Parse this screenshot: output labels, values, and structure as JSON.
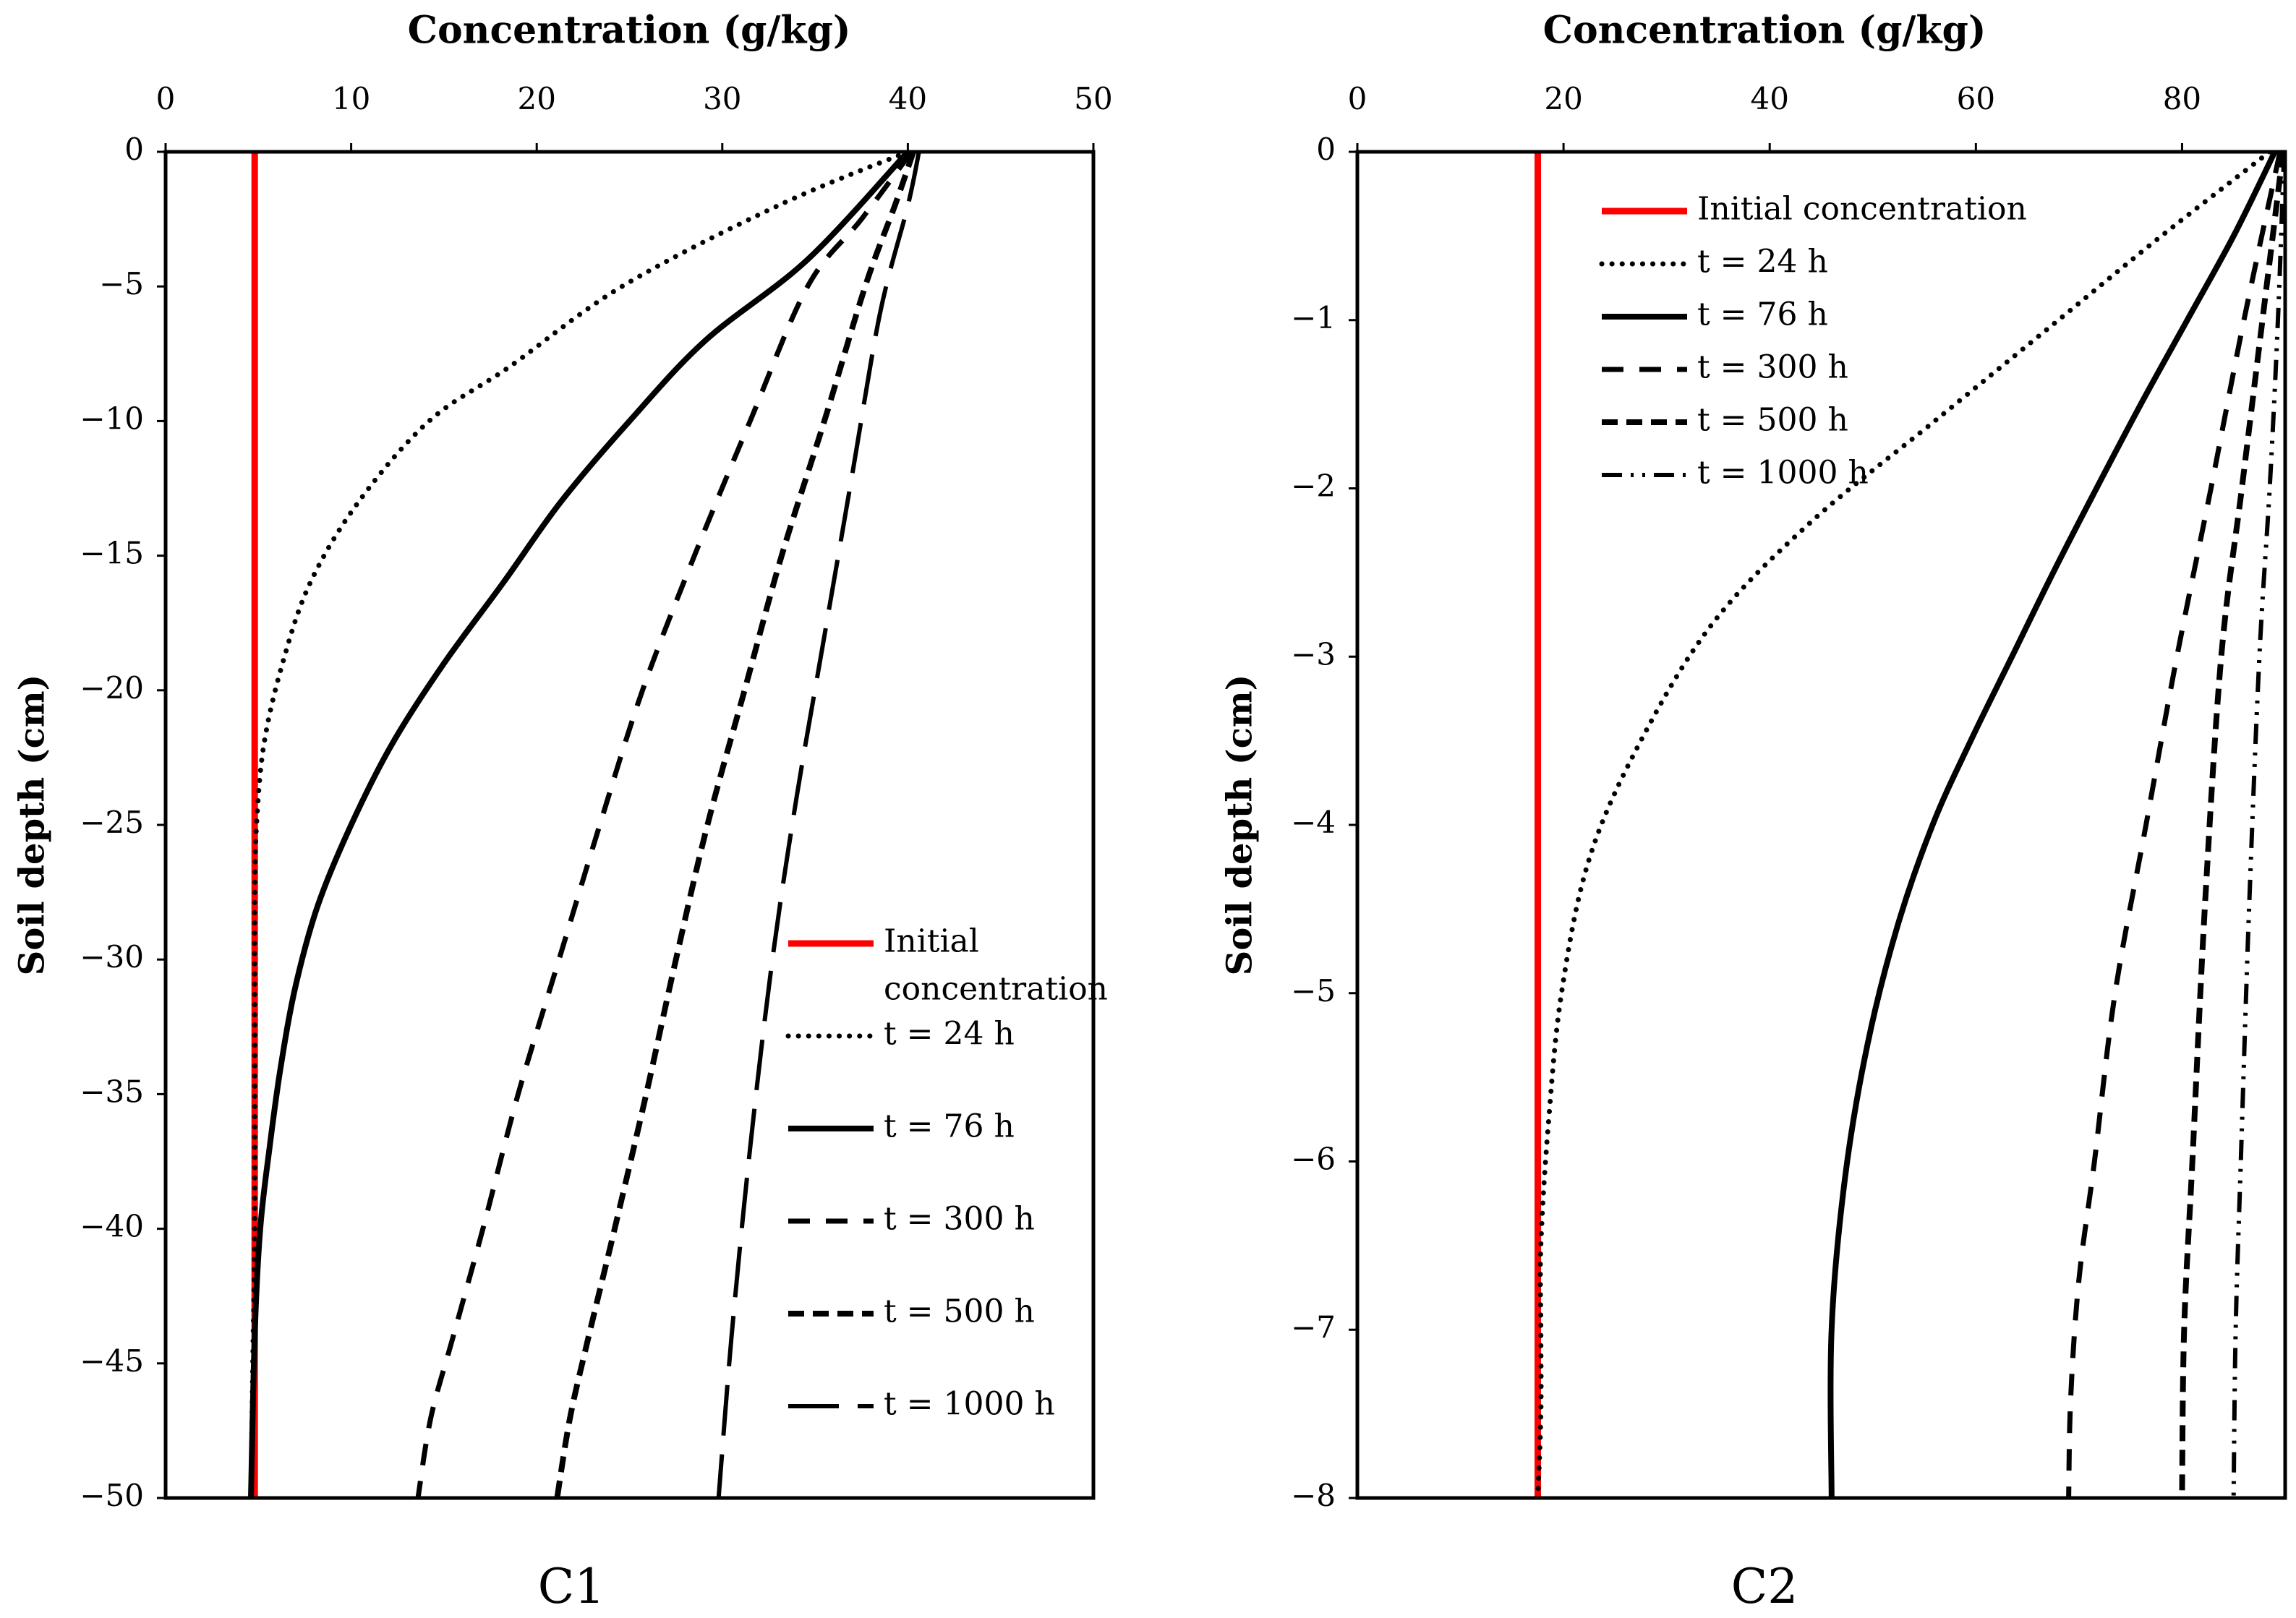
{
  "chart_data": [
    {
      "type": "line",
      "panel_label": "C1",
      "title": "Concentration (g/kg)",
      "xlabel": "Concentration (g/kg)",
      "ylabel": "Soil depth (cm)",
      "xlim": [
        0,
        50
      ],
      "ylim": [
        -50,
        0
      ],
      "x_ticks": [
        0,
        10,
        20,
        30,
        40,
        50
      ],
      "y_ticks": [
        0,
        -5,
        -10,
        -15,
        -20,
        -25,
        -30,
        -35,
        -40,
        -45,
        -50
      ],
      "x_tick_labels": [
        "0",
        "10",
        "20",
        "30",
        "40",
        "50"
      ],
      "y_tick_labels": [
        "0",
        "−5",
        "−10",
        "−15",
        "−20",
        "−25",
        "−30",
        "−35",
        "−40",
        "−45",
        "−50"
      ],
      "x_axis_position": "top",
      "grid": false,
      "legend_position": "bottom-right",
      "legend_layout": "spaced",
      "series": [
        {
          "name": "Initial concentration",
          "legend_lines": [
            "Initial",
            "concentration"
          ],
          "style": "solid-red",
          "color": "#ff0000",
          "x": [
            4.8,
            4.8
          ],
          "depth": [
            0,
            -50
          ]
        },
        {
          "name": "t = 24 h",
          "style": "dotted",
          "color": "#000000",
          "x": [
            40.0,
            33.0,
            24.6,
            18.5,
            14.2,
            10.4,
            7.8,
            6.3,
            5.3,
            4.9,
            4.8,
            4.8,
            4.8,
            4.8,
            4.7,
            4.6
          ],
          "depth": [
            0,
            -2,
            -5,
            -8,
            -10,
            -13,
            -16,
            -19,
            -22,
            -25,
            -28,
            -32,
            -36,
            -40,
            -45,
            -50
          ]
        },
        {
          "name": "t = 76 h",
          "style": "solid",
          "color": "#000000",
          "x": [
            40.0,
            34.6,
            29.1,
            25.0,
            21.3,
            18.2,
            15.0,
            12.2,
            10.0,
            8.2,
            7.0,
            6.2,
            5.6,
            5.1,
            4.8,
            4.6
          ],
          "depth": [
            0,
            -4,
            -7,
            -10,
            -13,
            -16,
            -19,
            -22,
            -25,
            -28,
            -31,
            -34,
            -37,
            -40,
            -44,
            -50
          ]
        },
        {
          "name": "t = 300 h",
          "style": "dashed",
          "color": "#000000",
          "x": [
            40.2,
            37.5,
            34.6,
            31.5,
            28.5,
            25.7,
            23.4,
            21.2,
            19.0,
            17.1,
            15.5,
            14.3,
            13.6
          ],
          "depth": [
            0,
            -2.5,
            -5,
            -10,
            -15,
            -20,
            -25,
            -30,
            -35,
            -40,
            -44,
            -47,
            -50
          ]
        },
        {
          "name": "t = 500 h",
          "style": "dash-dense",
          "color": "#000000",
          "x": [
            40.3,
            39.3,
            37.7,
            35.5,
            33.2,
            31.2,
            29.2,
            27.5,
            25.9,
            24.2,
            22.8,
            21.8,
            21.1
          ],
          "depth": [
            0,
            -2,
            -5,
            -10,
            -15,
            -20,
            -25,
            -30,
            -35,
            -40,
            -44,
            -47,
            -50
          ]
        },
        {
          "name": "t = 1000 h",
          "style": "long-dash",
          "color": "#000000",
          "x": [
            40.6,
            40.0,
            38.5,
            37.0,
            35.5,
            34.0,
            32.7,
            31.5,
            30.5,
            29.8
          ],
          "depth": [
            0,
            -2,
            -6,
            -12,
            -18,
            -24,
            -30,
            -37,
            -44,
            -50
          ]
        }
      ]
    },
    {
      "type": "line",
      "panel_label": "C2",
      "title": "Concentration (g/kg)",
      "xlabel": "Concentration (g/kg)",
      "ylabel": "Soil depth (cm)",
      "xlim": [
        0,
        90
      ],
      "ylim": [
        -8,
        0
      ],
      "x_ticks": [
        0,
        20,
        40,
        60,
        80
      ],
      "y_ticks": [
        0,
        -1,
        -2,
        -3,
        -4,
        -5,
        -6,
        -7,
        -8
      ],
      "x_tick_labels": [
        "0",
        "20",
        "40",
        "60",
        "80"
      ],
      "y_tick_labels": [
        "0",
        "−1",
        "−2",
        "−3",
        "−4",
        "−5",
        "−6",
        "−7",
        "−8"
      ],
      "x_axis_position": "top",
      "grid": false,
      "legend_position": "top-left",
      "legend_layout": "compact",
      "series": [
        {
          "name": "Initial concentration",
          "legend_lines": [
            "Initial concentration"
          ],
          "style": "solid-red",
          "color": "#ff0000",
          "x": [
            17.5,
            17.5
          ],
          "depth": [
            0,
            -8
          ]
        },
        {
          "name": "t = 24 h",
          "style": "dotted",
          "color": "#000000",
          "x": [
            88.5,
            78.0,
            68.0,
            56.0,
            44.0,
            34.5,
            27.5,
            22.5,
            19.8,
            18.5,
            17.8,
            17.8,
            17.8,
            17.5
          ],
          "depth": [
            0,
            -0.5,
            -1.0,
            -1.6,
            -2.2,
            -2.8,
            -3.5,
            -4.2,
            -5.0,
            -5.8,
            -6.5,
            -7.0,
            -7.5,
            -8.0
          ]
        },
        {
          "name": "t = 76 h",
          "style": "solid",
          "color": "#000000",
          "x": [
            89.0,
            85.0,
            80.5,
            76.0,
            71.7,
            67.5,
            63.5,
            59.5,
            55.8,
            52.4,
            49.5,
            47.3,
            46.0,
            46.0
          ],
          "depth": [
            0,
            -0.5,
            -1.0,
            -1.5,
            -2.0,
            -2.5,
            -3.0,
            -3.5,
            -4.0,
            -4.6,
            -5.3,
            -6.1,
            -7.0,
            -8.0
          ]
        },
        {
          "name": "t = 300 h",
          "style": "dashed",
          "color": "#000000",
          "x": [
            89.5,
            86.0,
            82.8,
            79.5,
            76.5,
            73.5,
            71.5,
            70.0,
            69.2,
            69.0
          ],
          "depth": [
            0,
            -1,
            -2,
            -3,
            -4,
            -5,
            -6,
            -6.7,
            -7.4,
            -8.0
          ]
        },
        {
          "name": "t = 500 h",
          "style": "dash-dense",
          "color": "#000000",
          "x": [
            89.8,
            87.8,
            85.8,
            83.8,
            82.2,
            81.0,
            80.2,
            80.0
          ],
          "depth": [
            0,
            -1,
            -2,
            -3,
            -4.5,
            -6,
            -7,
            -8
          ]
        },
        {
          "name": "t = 1000 h",
          "style": "dash-dot-dot",
          "color": "#000000",
          "x": [
            89.9,
            89.3,
            88.5,
            87.5,
            86.5,
            85.7,
            85.2,
            85.0
          ],
          "depth": [
            0,
            -1,
            -2,
            -3,
            -4.5,
            -6,
            -7,
            -8
          ]
        }
      ]
    }
  ]
}
